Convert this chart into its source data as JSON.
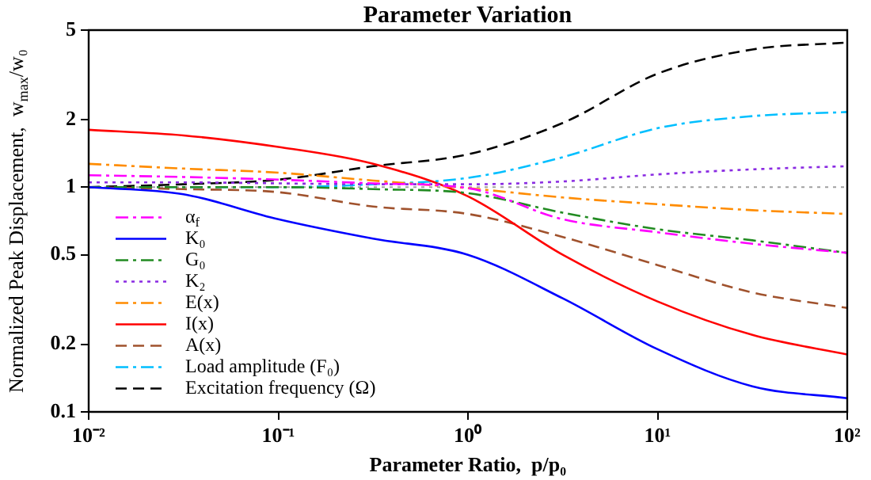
{
  "chart_data": {
    "type": "line",
    "title": "Parameter Variation",
    "xlabel": "Parameter Ratio,  p/p₀",
    "ylabel": "Normalized Peak Displacement,  w$_{max}$/w₀",
    "log": "xy",
    "grid": false,
    "legend": "bottom left",
    "xlim": [
      0.01,
      100
    ],
    "xticks": [
      {
        "value": 0.01,
        "label": "10⁻²"
      },
      {
        "value": 0.1,
        "label": "10⁻¹"
      },
      {
        "value": 1,
        "label": "10⁰"
      },
      {
        "value": 10,
        "label": "10¹"
      },
      {
        "value": 100,
        "label": "10²"
      }
    ],
    "ylim": [
      0.1,
      5
    ],
    "yticks": [
      0.1,
      0.2,
      0.5,
      1,
      2,
      5
    ],
    "x": [
      0.01,
      0.0316,
      0.1,
      0.316,
      1,
      3.16,
      10,
      31.6,
      100
    ],
    "ref_lines": [
      {
        "axis": "y",
        "value": 1,
        "color": "#a0a0a0",
        "line_style": "dotted"
      }
    ],
    "series": [
      {
        "name": "α$_{f}$",
        "color": "#ff00ff",
        "line_style": "dashdot",
        "values": [
          1.13,
          1.11,
          1.08,
          1.04,
          0.99,
          0.72,
          0.63,
          0.56,
          0.51
        ]
      },
      {
        "name": "K₀",
        "color": "#0000ff",
        "line_style": "solid",
        "values": [
          1.0,
          0.93,
          0.72,
          0.59,
          0.5,
          0.32,
          0.19,
          0.13,
          0.115
        ]
      },
      {
        "name": "G₀",
        "color": "#228b22",
        "line_style": "dashdot",
        "values": [
          1.0,
          1.0,
          1.0,
          0.98,
          0.94,
          0.77,
          0.65,
          0.58,
          0.51
        ]
      },
      {
        "name": "K₂",
        "color": "#8a2be2",
        "line_style": "dotted",
        "values": [
          1.05,
          1.05,
          1.04,
          1.03,
          1.03,
          1.06,
          1.14,
          1.2,
          1.24
        ]
      },
      {
        "name": "E(x)",
        "color": "#ff8c00",
        "line_style": "dashdot",
        "values": [
          1.27,
          1.21,
          1.16,
          1.07,
          0.99,
          0.9,
          0.84,
          0.79,
          0.76
        ]
      },
      {
        "name": "I(x)",
        "color": "#ff0000",
        "line_style": "solid",
        "values": [
          1.8,
          1.7,
          1.51,
          1.27,
          0.91,
          0.5,
          0.31,
          0.22,
          0.18
        ]
      },
      {
        "name": "A(x)",
        "color": "#a0522d",
        "line_style": "dashed",
        "values": [
          1.0,
          0.98,
          0.95,
          0.82,
          0.76,
          0.6,
          0.45,
          0.34,
          0.29
        ]
      },
      {
        "name": "Load amplitude (F₀)",
        "color": "#00bfff",
        "line_style": "dashdot",
        "values": [
          1.0,
          1.0,
          1.0,
          1.03,
          1.1,
          1.36,
          1.83,
          2.07,
          2.16
        ]
      },
      {
        "name": "Excitation frequency (Ω)",
        "color": "#000000",
        "line_style": "dashed",
        "values": [
          1.0,
          1.03,
          1.08,
          1.24,
          1.4,
          1.93,
          3.2,
          4.1,
          4.4
        ]
      }
    ]
  }
}
